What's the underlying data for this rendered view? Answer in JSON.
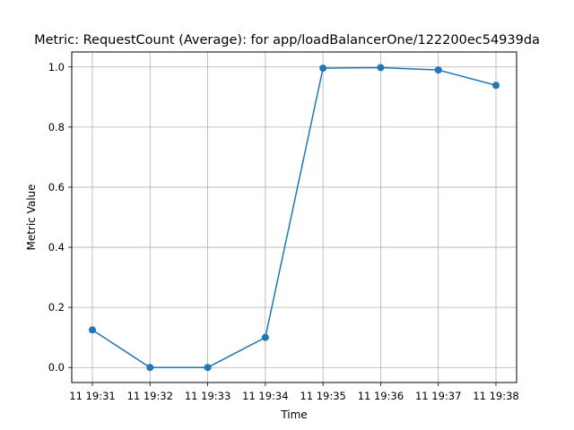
{
  "chart_data": {
    "type": "line",
    "title": "Metric: RequestCount (Average):  for app/loadBalancerOne/122200ec54939da",
    "xlabel": "Time",
    "ylabel": "Metric Value",
    "x": [
      "11 19:31",
      "11 19:32",
      "11 19:33",
      "11 19:34",
      "11 19:35",
      "11 19:36",
      "11 19:37",
      "11 19:38"
    ],
    "series": [
      {
        "values": [
          0.125,
          0.0,
          0.0,
          0.1,
          0.996,
          0.998,
          0.99,
          0.939
        ],
        "color": "#1f77b4",
        "marker": "circle"
      }
    ],
    "ylim": [
      -0.05,
      1.05
    ],
    "yticks": [
      0.0,
      0.2,
      0.4,
      0.6,
      0.8,
      1.0
    ],
    "ytick_labels": [
      "0.0",
      "0.2",
      "0.4",
      "0.6",
      "0.8",
      "1.0"
    ],
    "grid": true
  }
}
